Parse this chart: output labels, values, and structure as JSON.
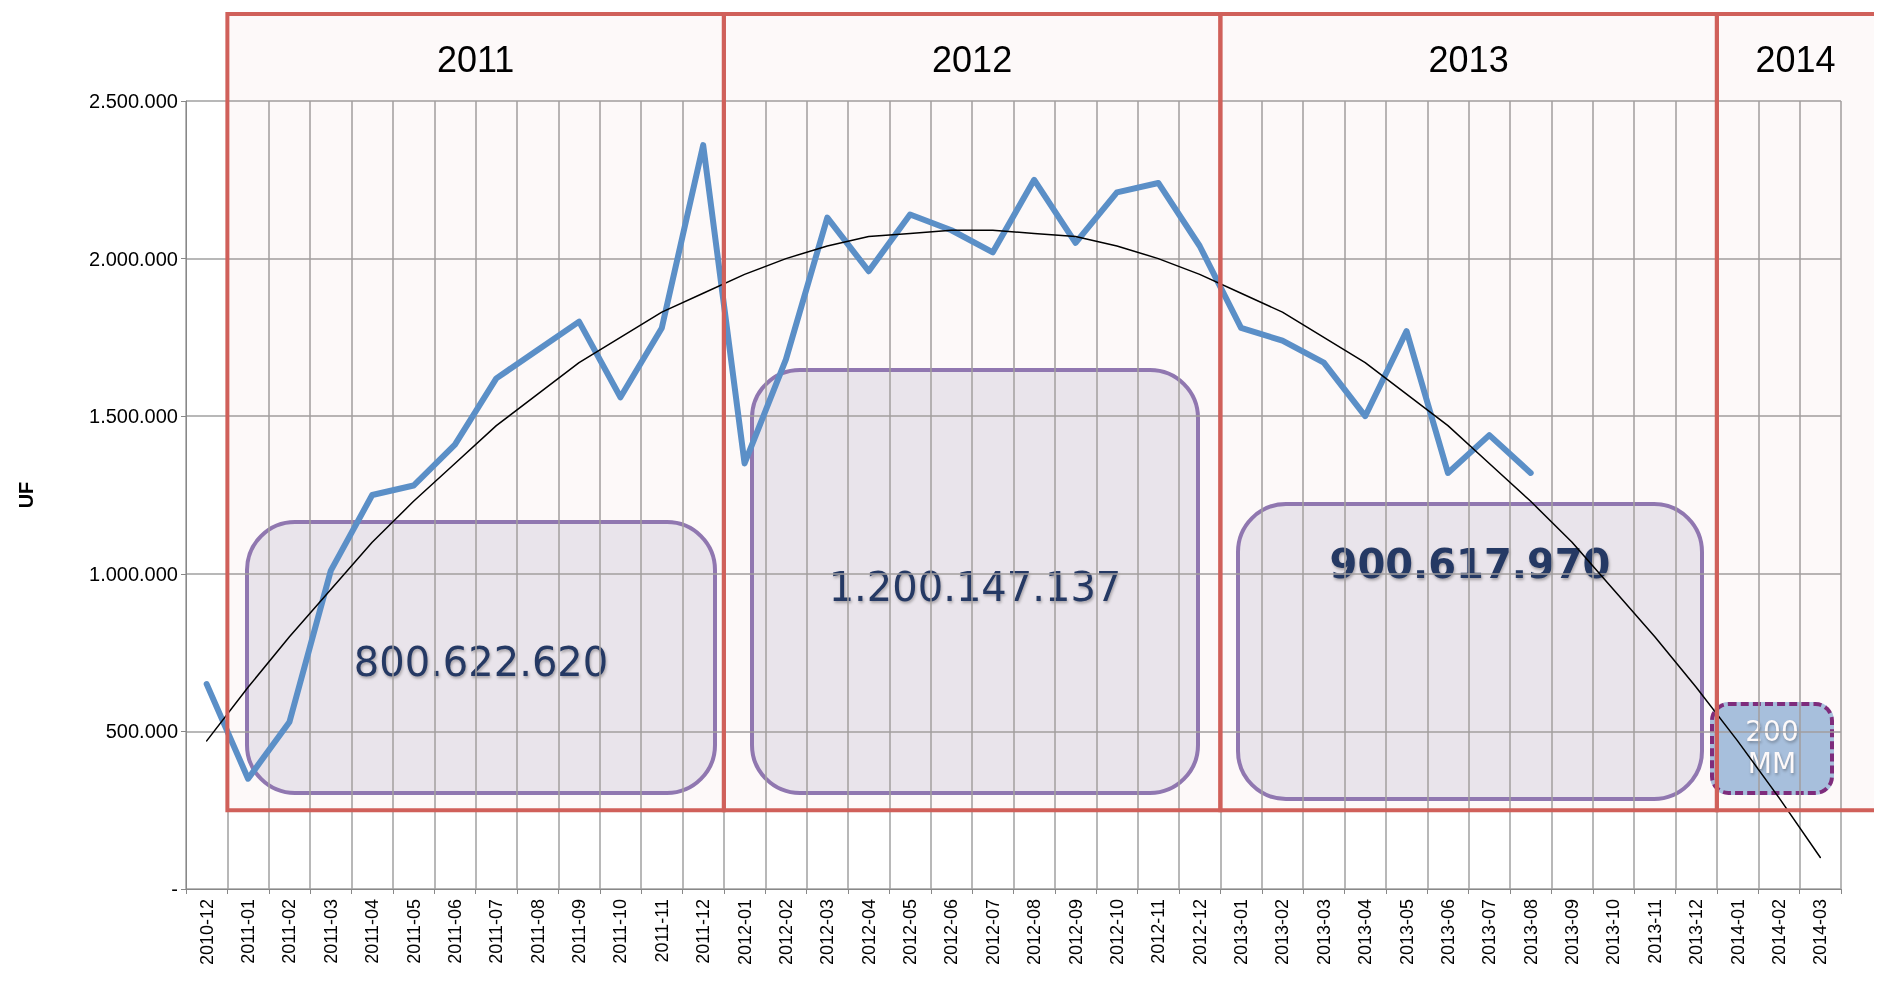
{
  "chart_data": {
    "type": "line",
    "ylabel": "UF",
    "categories": [
      "2010-12",
      "2011-01",
      "2011-02",
      "2011-03",
      "2011-04",
      "2011-05",
      "2011-06",
      "2011-07",
      "2011-08",
      "2011-09",
      "2011-10",
      "2011-11",
      "2011-12",
      "2012-01",
      "2012-02",
      "2012-03",
      "2012-04",
      "2012-05",
      "2012-06",
      "2012-07",
      "2012-08",
      "2012-09",
      "2012-10",
      "2012-11",
      "2012-12",
      "2013-01",
      "2013-02",
      "2013-03",
      "2013-04",
      "2013-05",
      "2013-06",
      "2013-07",
      "2013-08",
      "2013-09",
      "2013-10",
      "2013-11",
      "2013-12",
      "2014-01",
      "2014-02",
      "2014-03"
    ],
    "series": [
      {
        "color": "#5b8fc7",
        "values": [
          650000,
          350000,
          530000,
          1010000,
          1250000,
          1280000,
          1410000,
          1620000,
          1710000,
          1800000,
          1560000,
          1780000,
          2360000,
          1350000,
          1680000,
          2130000,
          1960000,
          2140000,
          2090000,
          2020000,
          2250000,
          2050000,
          2210000,
          2240000,
          2040000,
          1780000,
          1740000,
          1670000,
          1500000,
          1770000,
          1320000,
          1440000,
          1320000,
          null,
          null,
          null,
          null,
          null,
          null,
          null
        ]
      },
      {
        "type": "line",
        "color": "#000000",
        "values": [
          470000,
          640000,
          800000,
          950000,
          1100000,
          1230000,
          1350000,
          1470000,
          1570000,
          1670000,
          1750000,
          1830000,
          1890000,
          1950000,
          2000000,
          2040000,
          2070000,
          2080000,
          2090000,
          2090000,
          2080000,
          2070000,
          2040000,
          2000000,
          1950000,
          1890000,
          1830000,
          1750000,
          1670000,
          1570000,
          1470000,
          1350000,
          1230000,
          1100000,
          950000,
          800000,
          640000,
          470000,
          290000,
          100000
        ]
      }
    ],
    "ylim": [
      0,
      2500000
    ],
    "yticks": [
      {
        "value": 0,
        "label": "-"
      },
      {
        "value": 500000,
        "label": "500.000"
      },
      {
        "value": 1000000,
        "label": "1.000.000"
      },
      {
        "value": 1500000,
        "label": "1.500.000"
      },
      {
        "value": 2000000,
        "label": "2.000.000"
      },
      {
        "value": 2500000,
        "label": "2.500.000"
      }
    ],
    "grid": true,
    "marker": "none",
    "line_style": "solid",
    "bands": [
      {
        "axis": "x",
        "from": "2011-01",
        "to": "2011-12",
        "label": "2011",
        "color": "#d0605a"
      },
      {
        "axis": "x",
        "from": "2012-01",
        "to": "2012-12",
        "label": "2012",
        "color": "#d0605a"
      },
      {
        "axis": "x",
        "from": "2013-01",
        "to": "2013-12",
        "label": "2013",
        "color": "#d0605a"
      },
      {
        "axis": "x",
        "from": "2014-01",
        "to": "2014-03",
        "label": "2014",
        "color": "#d0605a"
      }
    ],
    "annotations": [
      "800.622.620",
      "1.200.147.137",
      "900.617.970",
      "200 MM"
    ]
  }
}
